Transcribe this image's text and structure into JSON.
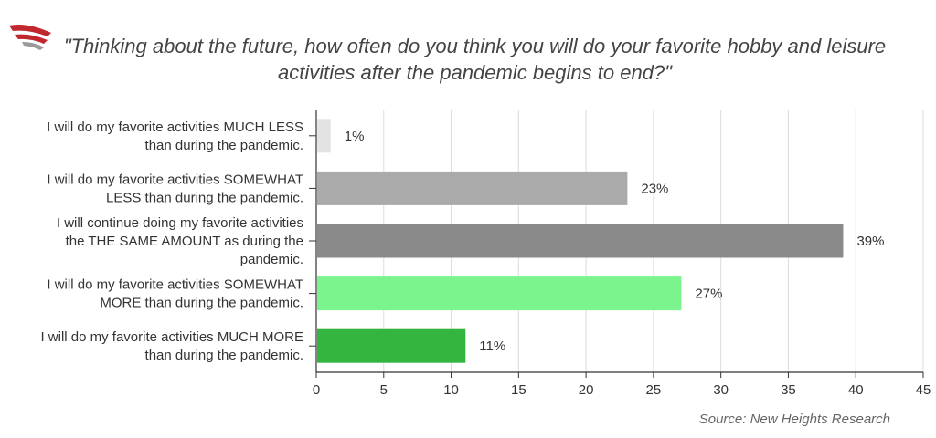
{
  "title_line1": "\"Thinking about the future, how often do you think you will do your favorite hobby and leisure",
  "title_line2": "activities after the pandemic begins to end?\"",
  "source": "Source: New Heights Research",
  "chart_data": {
    "type": "bar",
    "orientation": "horizontal",
    "categories": [
      [
        "I will do my favorite activities MUCH LESS",
        "than during the pandemic."
      ],
      [
        "I will do my favorite activities SOMEWHAT",
        "LESS than during the pandemic."
      ],
      [
        "I will continue doing my favorite activities",
        "the THE SAME AMOUNT as during the",
        "pandemic."
      ],
      [
        "I will do my favorite activities SOMEWHAT",
        "MORE than during the pandemic."
      ],
      [
        "I will do my favorite activities MUCH MORE",
        "than during the pandemic."
      ]
    ],
    "values": [
      1,
      23,
      39,
      27,
      11
    ],
    "data_labels": [
      "1%",
      "23%",
      "39%",
      "27%",
      "11%"
    ],
    "colors": [
      "#e3e3e3",
      "#aaaaaa",
      "#8a8a8a",
      "#7cf48e",
      "#33b540"
    ],
    "xlim": [
      0,
      45
    ],
    "xticks": [
      0,
      5,
      10,
      15,
      20,
      25,
      30,
      35,
      40,
      45
    ],
    "grid": true
  }
}
